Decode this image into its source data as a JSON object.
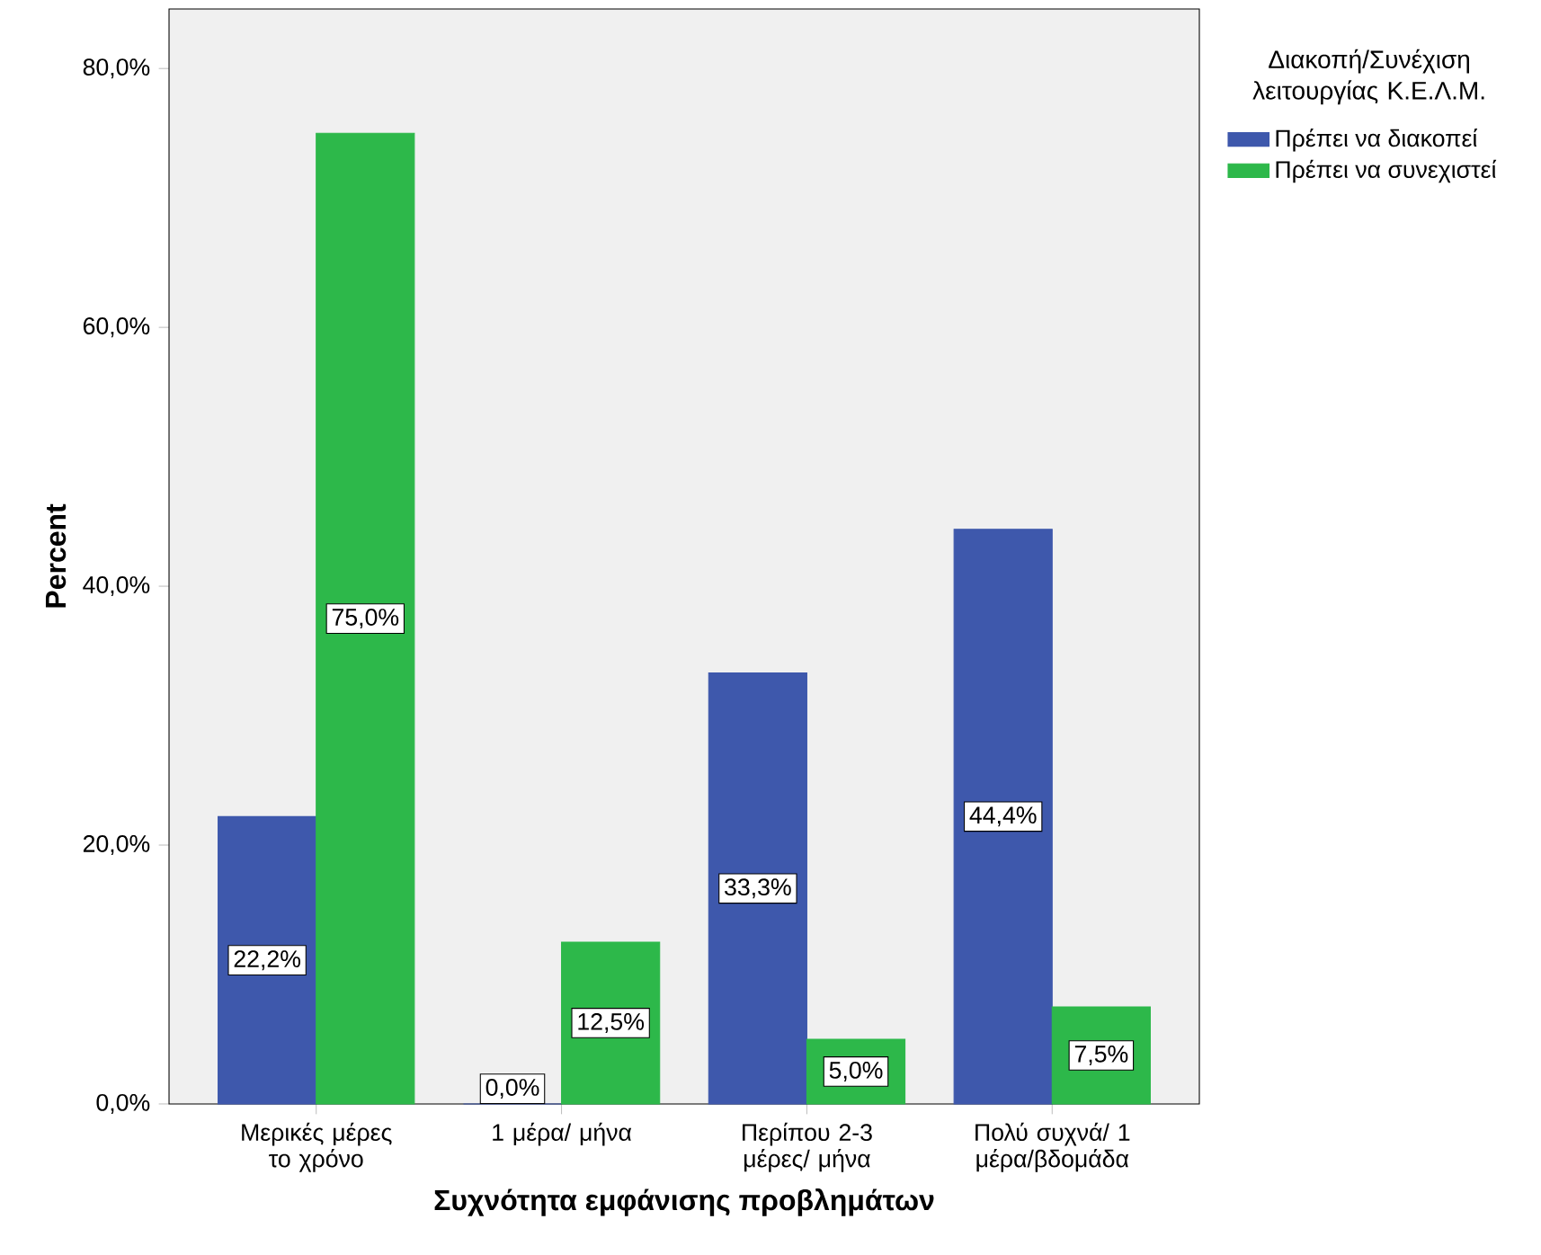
{
  "chart_data": {
    "type": "bar",
    "xlabel": "Συχνότητα εμφάνισης προβλημάτων",
    "ylabel": "Percent",
    "legend_title": "Διακοπή/Συνέχιση λειτουργίας Κ.Ε.Λ.Μ.",
    "categories": [
      "Μερικές μέρες το χρόνο",
      "1 μέρα/ μήνα",
      "Περίπου 2-3 μέρες/ μήνα",
      "Πολύ συχνά/ 1 μέρα/βδομάδα"
    ],
    "series": [
      {
        "name": "Πρέπει να διακοπεί",
        "color": "#3e58ac",
        "values": [
          22.2,
          0.0,
          33.3,
          44.4
        ],
        "value_labels": [
          "22,2%",
          "0,0%",
          "33,3%",
          "44,4%"
        ]
      },
      {
        "name": "Πρέπει να συνεχιστεί",
        "color": "#2db84a",
        "values": [
          75.0,
          12.5,
          5.0,
          7.5
        ],
        "value_labels": [
          "75,0%",
          "12,5%",
          "5,0%",
          "7,5%"
        ]
      }
    ],
    "ylim": [
      0,
      84.6
    ],
    "yticks": [
      {
        "value": 0,
        "label": "0,0%"
      },
      {
        "value": 20,
        "label": "20,0%"
      },
      {
        "value": 40,
        "label": "40,0%"
      },
      {
        "value": 60,
        "label": "60,0%"
      },
      {
        "value": 80,
        "label": "80,0%"
      }
    ],
    "grid": false,
    "legend": "top right"
  }
}
